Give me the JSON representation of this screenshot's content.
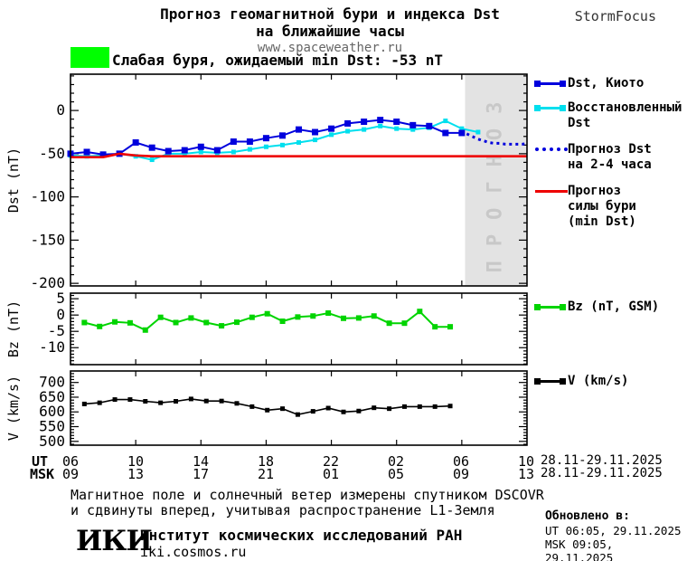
{
  "header": {
    "title_line1": "Прогноз геомагнитной бури и индекса Dst",
    "title_line2": "на ближайшие часы",
    "website": "www.spaceweather.ru",
    "brand": "StormFocus"
  },
  "status": {
    "swatch_color": "#00ff00",
    "text": "Слабая буря, ожидаемый min Dst: -53 nT"
  },
  "watermark": {
    "text": "ПРОГНОЗ",
    "color": "#c8c8c8",
    "band_color": "#e3e3e3"
  },
  "legend": {
    "dst": [
      {
        "lines": [
          "Dst, Киото"
        ],
        "color": "#0000dd",
        "style": "line-squares"
      },
      {
        "lines": [
          "Восстановленный",
          "Dst"
        ],
        "color": "#00dfee",
        "style": "line-squares"
      },
      {
        "lines": [
          "Прогноз Dst",
          "на 2-4 часа"
        ],
        "color": "#0000dd",
        "style": "dotted"
      },
      {
        "lines": [
          "Прогноз",
          "силы бури",
          "(min Dst)"
        ],
        "color": "#ee0000",
        "style": "line"
      }
    ],
    "bz": {
      "label": "Bz (nT, GSM)",
      "color": "#00d400"
    },
    "v": {
      "label": "V (km/s)",
      "color": "#000000"
    }
  },
  "xaxis": {
    "ut_label": "UT",
    "msk_label": "MSK",
    "ut_ticks": [
      "06",
      "10",
      "14",
      "18",
      "22",
      "02",
      "06",
      "10"
    ],
    "msk_ticks": [
      "09",
      "13",
      "17",
      "21",
      "01",
      "05",
      "09",
      "13"
    ],
    "ut_date": "28.11-29.11.2025",
    "msk_date": "28.11-29.11.2025"
  },
  "footer": {
    "line1": "Магнитное поле и солнечный ветер измерены спутником DSCOVR",
    "line2": "и сдвинуты вперед, учитывая распространение L1-Земля",
    "logo": "ИКИ",
    "institute": "Институт космических исследований РАН",
    "site": "iki.cosmos.ru",
    "updated_label": "Обновлено в:",
    "updated_ut": "UT  06:05, 29.11.2025",
    "updated_msk": "MSK 09:05, 29.11.2025"
  },
  "chart_data": [
    {
      "type": "line",
      "title": "Прогноз геомагнитной бури и индекса Dst",
      "ylabel": "Dst (nT)",
      "ylim": [
        -203,
        42
      ],
      "yticks": [
        0,
        -50,
        -100,
        -150,
        -200
      ],
      "y_minor_step": 10,
      "xlim_hours": [
        0,
        28
      ],
      "x_major_step": 4,
      "x_start_ut": "06:00 28.11.2025",
      "forecast_band_start_hour": 24.2,
      "series": [
        {
          "name": "Восстановленный Dst",
          "color": "#00dfee",
          "style": "solid",
          "marker": "square",
          "marker_size": 5,
          "width": 2,
          "x0": 0,
          "dx": 1,
          "values": [
            -52,
            -53,
            -52,
            -50,
            -53,
            -57,
            -50,
            -50,
            -48,
            -49,
            -48,
            -45,
            -42,
            -40,
            -37,
            -34,
            -28,
            -24,
            -22,
            -18,
            -21,
            -22,
            -20,
            -12,
            -21,
            -25
          ]
        },
        {
          "name": "Dst, Киото",
          "color": "#0000dd",
          "style": "solid",
          "marker": "square",
          "marker_size": 7,
          "width": 2,
          "x0": 0,
          "dx": 1,
          "values": [
            -50,
            -48,
            -51,
            -50,
            -37,
            -43,
            -47,
            -46,
            -42,
            -46,
            -36,
            -36,
            -32,
            -29,
            -22,
            -25,
            -21,
            -15,
            -13,
            -11,
            -13,
            -17,
            -18,
            -26,
            -26
          ]
        },
        {
          "name": "Прогноз силы бури (min Dst)",
          "color": "#ee0000",
          "style": "solid",
          "marker": "none",
          "marker_size": 0,
          "width": 2.6,
          "x0": 0,
          "dx": 1,
          "values": [
            -54,
            -54,
            -54,
            -50,
            -52,
            -53,
            -53,
            -53,
            -53,
            -53,
            -53,
            -53,
            -53,
            -53,
            -53,
            -53,
            -53,
            -53,
            -53,
            -53,
            -53,
            -53,
            -53,
            -53,
            -53,
            -53,
            -53,
            -53,
            -53
          ]
        },
        {
          "name": "Прогноз Dst на 2-4 часа",
          "color": "#0000dd",
          "style": "dotted",
          "marker": "none",
          "marker_size": 0,
          "width": 3,
          "x0": 24.3,
          "dx": 0.34,
          "values": [
            -27,
            -30,
            -33,
            -35,
            -37,
            -38,
            -38,
            -39,
            -39,
            -39,
            -39,
            -38
          ]
        }
      ]
    },
    {
      "type": "line",
      "ylabel": "Bz (nT)",
      "ylim": [
        -15.2,
        6.7
      ],
      "yticks": [
        5,
        0,
        -5,
        -10
      ],
      "y_minor_step": 1,
      "xlim_hours": [
        0,
        28
      ],
      "x_major_step": 4,
      "series": [
        {
          "name": "Bz (nT, GSM)",
          "color": "#00d400",
          "style": "solid",
          "marker": "square",
          "marker_size": 6,
          "width": 2,
          "x0": 0.85,
          "dx": 0.935,
          "values": [
            -2.3,
            -3.5,
            -2.1,
            -2.4,
            -4.6,
            -0.7,
            -2.3,
            -0.9,
            -2.3,
            -3.3,
            -2.2,
            -0.7,
            0.4,
            -1.9,
            -0.6,
            -0.3,
            0.6,
            -1.0,
            -0.9,
            -0.3,
            -2.5,
            -2.5,
            1.1,
            -3.6,
            -3.6
          ]
        }
      ]
    },
    {
      "type": "line",
      "ylabel": "V (km/s)",
      "ylim": [
        487,
        739
      ],
      "yticks": [
        700,
        650,
        600,
        550,
        500
      ],
      "y_minor_step": 10,
      "xlim_hours": [
        0,
        28
      ],
      "x_major_step": 4,
      "series": [
        {
          "name": "V (km/s)",
          "color": "#000000",
          "style": "solid",
          "marker": "square",
          "marker_size": 5,
          "width": 1.6,
          "x0": 0.85,
          "dx": 0.935,
          "values": [
            627,
            631,
            642,
            642,
            636,
            631,
            636,
            644,
            637,
            637,
            629,
            618,
            606,
            611,
            591,
            602,
            613,
            600,
            603,
            614,
            611,
            618,
            618,
            618,
            620
          ]
        }
      ]
    }
  ]
}
